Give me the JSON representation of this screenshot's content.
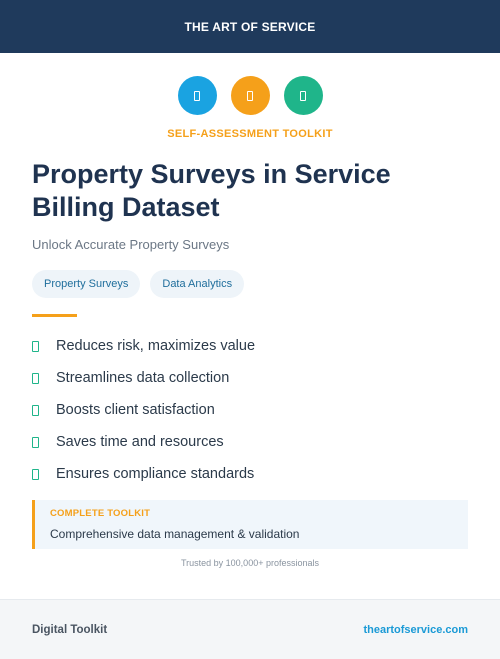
{
  "colors": {
    "navy": "#1f3a5c",
    "blue": "#1aa3e1",
    "orange": "#f5a01a",
    "green": "#1fb58a",
    "link": "#1a9ad6"
  },
  "header": {
    "title": "THE ART OF SERVICE"
  },
  "icons": [
    {
      "name": "document-icon",
      "color": "#1aa3e1"
    },
    {
      "name": "document-icon",
      "color": "#f5a01a"
    },
    {
      "name": "document-icon",
      "color": "#1fb58a"
    }
  ],
  "kit_label": "SELF-ASSESSMENT TOOLKIT",
  "title": "Property Surveys in Service Billing Dataset",
  "subtitle": "Unlock Accurate Property Surveys",
  "tags": [
    "Property Surveys",
    "Data Analytics"
  ],
  "features": [
    "Reduces risk, maximizes value",
    "Streamlines data collection",
    "Boosts client satisfaction",
    "Saves time and resources",
    "Ensures compliance standards"
  ],
  "callout": {
    "label": "COMPLETE TOOLKIT",
    "text": "Comprehensive data management & validation"
  },
  "trust": "Trusted by 100,000+ professionals",
  "footer": {
    "left": "Digital Toolkit",
    "right": "theartofservice.com"
  }
}
